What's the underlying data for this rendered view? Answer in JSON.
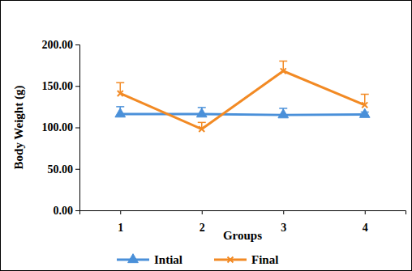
{
  "chart_data": {
    "type": "line",
    "x_label": "Groups",
    "y_label": "Body Weight (g)",
    "categories": [
      "1",
      "2",
      "3",
      "4"
    ],
    "series": [
      {
        "name": "Intial",
        "color": "#4a90d9",
        "marker": "triangle",
        "values": [
          116,
          116,
          115,
          115.5
        ],
        "errors": [
          9,
          8,
          8,
          3
        ]
      },
      {
        "name": "Final",
        "color": "#f28a24",
        "marker": "x",
        "values": [
          141,
          98,
          168,
          127
        ],
        "errors": [
          13,
          8,
          12,
          13
        ]
      }
    ],
    "ylim": [
      0,
      200
    ],
    "yticks": [
      {
        "value": 0,
        "label": "0.00"
      },
      {
        "value": 50,
        "label": "50.00"
      },
      {
        "value": 100,
        "label": "100.00"
      },
      {
        "value": 150,
        "label": "150.00"
      },
      {
        "value": 200,
        "label": "200.00"
      }
    ],
    "grid": false,
    "legend": "bottom"
  }
}
